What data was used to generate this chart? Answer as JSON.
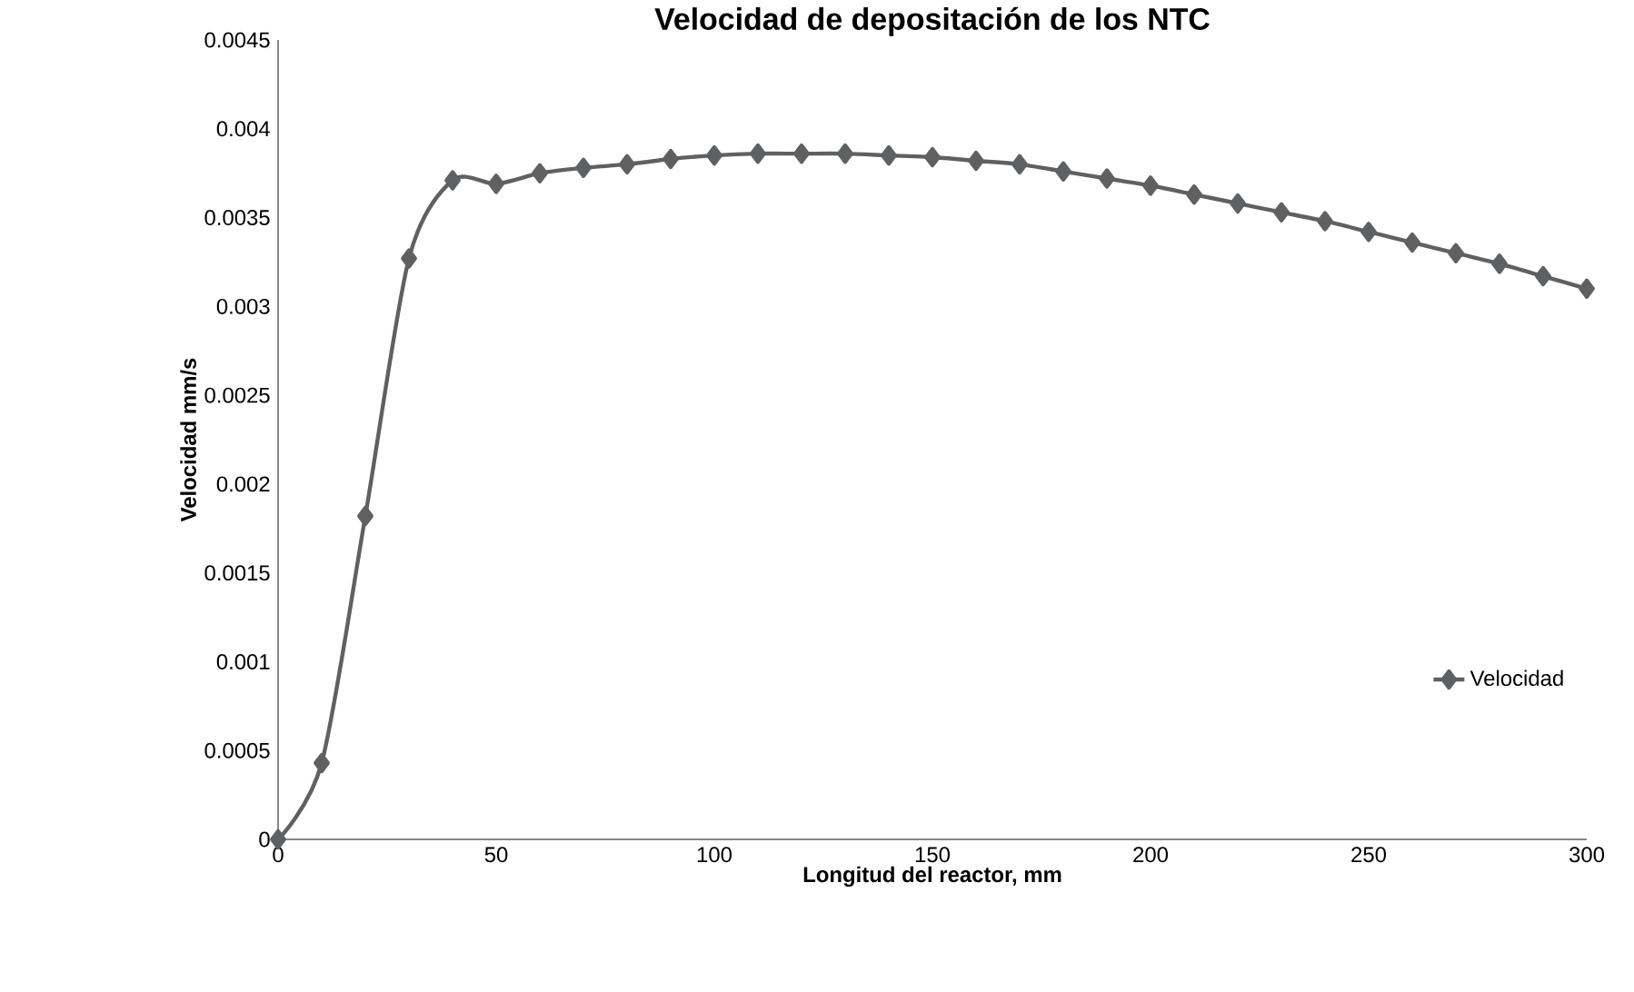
{
  "chart_data": {
    "type": "line",
    "title": "Velocidad de depositación de los NTC",
    "xlabel": "Longitud del reactor, mm",
    "ylabel": "Velocidad mm/s",
    "x": [
      0,
      10,
      20,
      30,
      40,
      50,
      60,
      70,
      80,
      90,
      100,
      110,
      120,
      130,
      140,
      150,
      160,
      170,
      180,
      190,
      200,
      210,
      220,
      230,
      240,
      250,
      260,
      270,
      280,
      290,
      300
    ],
    "series": [
      {
        "name": "Velocidad",
        "color": "#5f6062",
        "values": [
          0,
          0.00043,
          0.00182,
          0.00327,
          0.00371,
          0.00369,
          0.00375,
          0.00378,
          0.0038,
          0.00383,
          0.00385,
          0.00386,
          0.00386,
          0.00386,
          0.00385,
          0.00384,
          0.00382,
          0.0038,
          0.00376,
          0.00372,
          0.00368,
          0.00363,
          0.00358,
          0.00353,
          0.00348,
          0.00342,
          0.00336,
          0.0033,
          0.00324,
          0.00317,
          0.0031
        ]
      }
    ],
    "xlim": [
      0,
      300
    ],
    "ylim": [
      0,
      0.0045
    ],
    "xticks": [
      0,
      50,
      100,
      150,
      200,
      250,
      300
    ],
    "yticks": [
      0,
      0.0005,
      0.001,
      0.0015,
      0.002,
      0.0025,
      0.003,
      0.0035,
      0.004,
      0.0045
    ],
    "grid": false,
    "legend": "right",
    "marker": "diamond",
    "line_style": "solid"
  }
}
